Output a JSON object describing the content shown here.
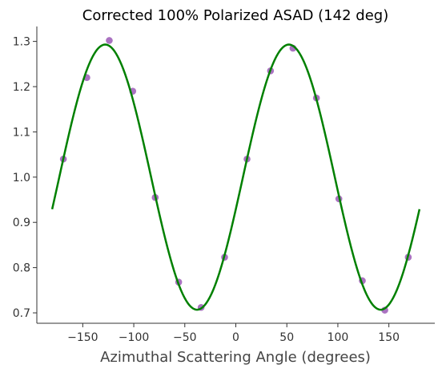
{
  "chart_data": {
    "type": "scatter",
    "title": "Corrected 100% Polarized ASAD (142 deg)",
    "xlabel": "Azimuthal Scattering Angle (degrees)",
    "ylabel": "",
    "xlim": [
      -195,
      195
    ],
    "ylim": [
      0.677,
      1.333
    ],
    "x_ticks": [
      "-150",
      "-100",
      "-50",
      "0",
      "50",
      "100",
      "150"
    ],
    "x_tick_values": [
      -150,
      -100,
      -50,
      0,
      50,
      100,
      150
    ],
    "y_ticks": [
      "0.7",
      "0.8",
      "0.9",
      "1.0",
      "1.1",
      "1.2",
      "1.3"
    ],
    "y_tick_values": [
      0.7,
      0.8,
      0.9,
      1.0,
      1.1,
      1.2,
      1.3
    ],
    "grid": false,
    "series": [
      {
        "kind": "points",
        "color": "#9b59b6",
        "x": [
          -169,
          -146,
          -124,
          -101,
          -79,
          -56,
          -34,
          -11,
          11,
          34,
          56,
          79,
          101,
          124,
          146,
          169
        ],
        "y": [
          1.04,
          1.22,
          1.302,
          1.19,
          0.955,
          0.768,
          0.712,
          0.823,
          1.04,
          1.235,
          1.285,
          1.175,
          0.952,
          0.771,
          0.706,
          0.823
        ]
      },
      {
        "kind": "fit_curve",
        "color": "#008000",
        "x_range": [
          -180,
          180
        ],
        "model": "A + B*cos(2*(x - phi))",
        "A": 1.0,
        "B": 0.293,
        "phi_deg": 52
      }
    ]
  }
}
